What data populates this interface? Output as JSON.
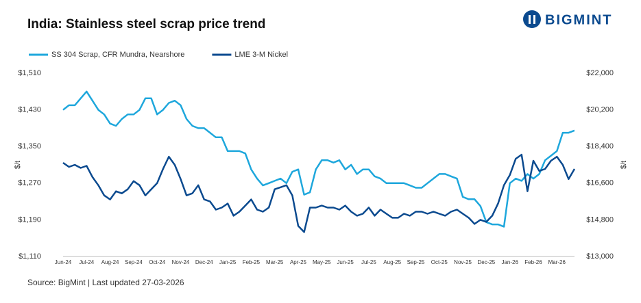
{
  "chart_data": {
    "type": "line",
    "title": "India: Stainless steel scrap price trend",
    "brand": "BIGMINT",
    "source": "Source: BigMint | Last updated 27-03-2026",
    "ylabel": "$/t",
    "y2label": "$/t",
    "categories": [
      "Jun-24",
      null,
      null,
      null,
      "Jul-24",
      null,
      null,
      null,
      "Aug-24",
      null,
      null,
      null,
      "Sep-24",
      null,
      null,
      null,
      "Oct-24",
      null,
      null,
      null,
      "Nov-24",
      null,
      null,
      null,
      "Dec-24",
      null,
      null,
      null,
      "Jan-25",
      null,
      null,
      null,
      "Feb-25",
      null,
      null,
      null,
      "Mar-25",
      null,
      null,
      null,
      "Apr-25",
      null,
      null,
      null,
      "May-25",
      null,
      null,
      null,
      "Jun-25",
      null,
      null,
      null,
      "Jul-25",
      null,
      null,
      null,
      "Aug-25",
      null,
      null,
      null,
      "Sep-25",
      null,
      null,
      null,
      "Oct-25",
      null,
      null,
      null,
      "Nov-25",
      null,
      null,
      null,
      "Dec-25",
      null,
      null,
      null,
      "Jan-26",
      null,
      null,
      null,
      "Feb-26",
      null,
      null,
      null,
      "Mar-26",
      null,
      null,
      null
    ],
    "series": [
      {
        "name": "SS 304 Scrap, CFR Mundra, Nearshore",
        "color": "#1ea7dc",
        "values": [
          1430,
          1440,
          1440,
          1455,
          1470,
          1450,
          1430,
          1420,
          1400,
          1395,
          1410,
          1420,
          1420,
          1430,
          1455,
          1455,
          1420,
          1430,
          1445,
          1450,
          1440,
          1410,
          1395,
          1390,
          1390,
          1380,
          1370,
          1370,
          1340,
          1340,
          1340,
          1335,
          1300,
          1280,
          1265,
          1270,
          1275,
          1280,
          1270,
          1295,
          1300,
          1245,
          1250,
          1300,
          1320,
          1320,
          1315,
          1320,
          1300,
          1310,
          1290,
          1300,
          1300,
          1285,
          1280,
          1270,
          1270,
          1270,
          1270,
          1265,
          1260,
          1260,
          1270,
          1280,
          1290,
          1290,
          1285,
          1280,
          1240,
          1235,
          1235,
          1220,
          1185,
          1180,
          1180,
          1175,
          1270,
          1280,
          1275,
          1290,
          1280,
          1290,
          1320,
          1330,
          1340,
          1380,
          1380,
          1385
        ]
      },
      {
        "name": "LME 3-M Nickel",
        "color": "#0b4a8f",
        "axis": "y2",
        "values": [
          17600,
          17400,
          17500,
          17350,
          17450,
          16900,
          16500,
          16000,
          15800,
          16200,
          16100,
          16300,
          16700,
          16500,
          16000,
          16300,
          16600,
          17300,
          17900,
          17500,
          16800,
          16000,
          16100,
          16500,
          15800,
          15700,
          15300,
          15400,
          15600,
          15000,
          15200,
          15500,
          15800,
          15300,
          15200,
          15400,
          16300,
          16400,
          16500,
          16000,
          14500,
          14200,
          15400,
          15400,
          15500,
          15400,
          15400,
          15300,
          15500,
          15200,
          15000,
          15100,
          15400,
          15000,
          15300,
          15100,
          14900,
          14900,
          15100,
          15000,
          15200,
          15200,
          15100,
          15200,
          15100,
          15000,
          15200,
          15300,
          15100,
          14900,
          14600,
          14800,
          14700,
          15000,
          15600,
          16500,
          17000,
          17800,
          18000,
          16200,
          17700,
          17200,
          17300,
          17700,
          17900,
          17500,
          16800,
          17300
        ]
      }
    ],
    "ylim": [
      1110,
      1510
    ],
    "yticks": [
      {
        "value": 1110,
        "label": "$1,110"
      },
      {
        "value": 1190,
        "label": "$1,190"
      },
      {
        "value": 1270,
        "label": "$1,270"
      },
      {
        "value": 1350,
        "label": "$1,350"
      },
      {
        "value": 1430,
        "label": "$1,430"
      },
      {
        "value": 1510,
        "label": "$1,510"
      }
    ],
    "y2lim": [
      13000,
      22000
    ],
    "y2ticks": [
      {
        "value": 13000,
        "label": "$13,000"
      },
      {
        "value": 14800,
        "label": "$14,800"
      },
      {
        "value": 16600,
        "label": "$16,600"
      },
      {
        "value": 18400,
        "label": "$18,400"
      },
      {
        "value": 20200,
        "label": "$20,200"
      },
      {
        "value": 22000,
        "label": "$22,000"
      }
    ],
    "legend": "top-left"
  }
}
